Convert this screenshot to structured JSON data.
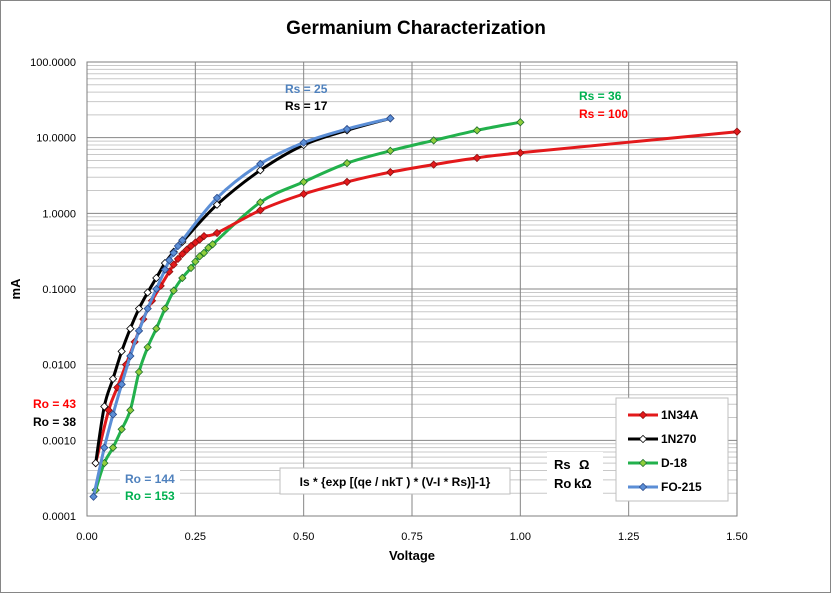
{
  "chart_data": {
    "type": "line",
    "title": "Germanium Characterization",
    "xlabel": "Voltage",
    "ylabel": "mA",
    "x_scale": "linear",
    "y_scale": "log",
    "xlim": [
      0,
      1.5
    ],
    "ylim": [
      0.0001,
      100
    ],
    "x_ticks": [
      "0.00",
      "0.25",
      "0.50",
      "0.75",
      "1.00",
      "1.25",
      "1.50"
    ],
    "y_ticks": [
      "0.0001",
      "0.0010",
      "0.0100",
      "0.1000",
      "1.0000",
      "10.0000",
      "100.0000"
    ],
    "grid": true,
    "legend_position": "bottom-right",
    "series": [
      {
        "name": "1N34A",
        "color": "#e3191b",
        "marker_fill": "#e3191b",
        "marker_stroke": "#8b1010",
        "x": [
          0.02,
          0.05,
          0.07,
          0.09,
          0.11,
          0.13,
          0.15,
          0.17,
          0.19,
          0.2,
          0.21,
          0.22,
          0.23,
          0.24,
          0.25,
          0.26,
          0.27,
          0.3,
          0.4,
          0.5,
          0.6,
          0.7,
          0.8,
          0.9,
          1.0,
          1.5
        ],
        "y": [
          0.0005,
          0.0025,
          0.005,
          0.01,
          0.02,
          0.04,
          0.07,
          0.11,
          0.17,
          0.21,
          0.25,
          0.29,
          0.33,
          0.37,
          0.41,
          0.45,
          0.5,
          0.55,
          1.1,
          1.8,
          2.6,
          3.5,
          4.4,
          5.4,
          6.3,
          12.0
        ]
      },
      {
        "name": "1N270",
        "color": "#000000",
        "marker_fill": "#ffffff",
        "marker_stroke": "#000000",
        "x": [
          0.02,
          0.04,
          0.06,
          0.08,
          0.1,
          0.12,
          0.14,
          0.16,
          0.18,
          0.2,
          0.22,
          0.3,
          0.4,
          0.5,
          0.6,
          0.7
        ],
        "y": [
          0.0005,
          0.0028,
          0.0065,
          0.015,
          0.03,
          0.055,
          0.09,
          0.14,
          0.22,
          0.31,
          0.42,
          1.3,
          3.7,
          8.0,
          12.5,
          18.0
        ]
      },
      {
        "name": "D-18",
        "color": "#22b14c",
        "marker_fill": "#8fce3c",
        "marker_stroke": "#1a6d2c",
        "x": [
          0.02,
          0.04,
          0.06,
          0.08,
          0.1,
          0.12,
          0.14,
          0.16,
          0.18,
          0.2,
          0.22,
          0.24,
          0.25,
          0.26,
          0.27,
          0.28,
          0.29,
          0.4,
          0.5,
          0.6,
          0.7,
          0.8,
          0.9,
          1.0
        ],
        "y": [
          0.00022,
          0.0005,
          0.0008,
          0.0014,
          0.0025,
          0.008,
          0.017,
          0.03,
          0.055,
          0.095,
          0.14,
          0.19,
          0.23,
          0.27,
          0.3,
          0.35,
          0.39,
          1.4,
          2.6,
          4.6,
          6.7,
          9.2,
          12.5,
          16.0
        ]
      },
      {
        "name": "FO-215",
        "color": "#5b8ed6",
        "marker_fill": "#5b8ed6",
        "marker_stroke": "#2a4a8a",
        "x": [
          0.015,
          0.04,
          0.06,
          0.08,
          0.1,
          0.12,
          0.14,
          0.16,
          0.18,
          0.19,
          0.2,
          0.21,
          0.22,
          0.3,
          0.4,
          0.5,
          0.6,
          0.7
        ],
        "y": [
          0.00018,
          0.0008,
          0.0022,
          0.0055,
          0.013,
          0.028,
          0.055,
          0.1,
          0.18,
          0.24,
          0.3,
          0.37,
          0.44,
          1.6,
          4.5,
          8.6,
          13.0,
          18.0
        ]
      }
    ]
  },
  "annotations": {
    "rs_fo215": "Rs = 25",
    "rs_1n270": "Rs = 17",
    "rs_d18": "Rs = 36",
    "rs_1n34a": "Rs = 100",
    "ro_1n34a": "Ro = 43",
    "ro_1n270": "Ro = 38",
    "ro_fo215": "Ro = 144",
    "ro_d18": "Ro = 153",
    "formula": "Is * {exp [(qe / nkT ) * (V-I * Rs)]-1}",
    "rs_unit_label": "Rs",
    "rs_unit": "Ω",
    "ro_unit_label": "Ro",
    "ro_unit": "kΩ"
  },
  "colors": {
    "fo215_text": "#4f81bd",
    "d18_text": "#00b050",
    "red_text": "#ff0000",
    "black_text": "#000000"
  }
}
